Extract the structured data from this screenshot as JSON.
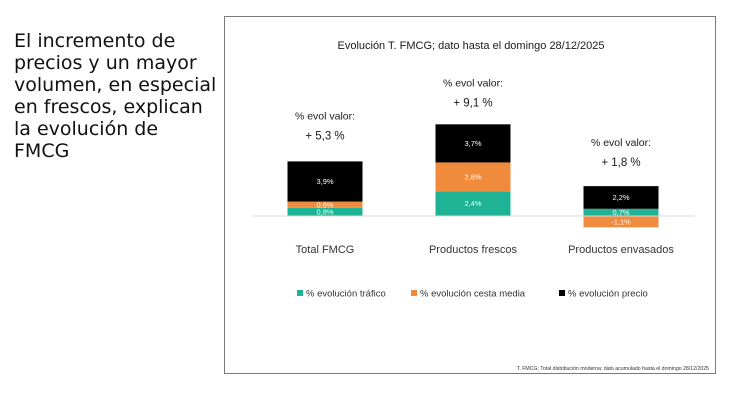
{
  "slide": {
    "intro_text": "El incremento de\nprecios y un mayor\nvolumen, en especial\nen frescos, explican\nla evolución de\nFMCG"
  },
  "chart_data": {
    "type": "bar",
    "stacked": true,
    "title": "Evolución T. FMCG; dato hasta el domingo 28/12/2025",
    "categories": [
      "Total FMCG",
      "Productos frescos",
      "Productos envasados"
    ],
    "series": [
      {
        "name": "% evolución tráfico",
        "color": "#1db394",
        "values": [
          0.8,
          2.4,
          0.7
        ],
        "labels": [
          "0,8%",
          "2,4%",
          "0,7%"
        ]
      },
      {
        "name": "% evolución cesta media",
        "color": "#f08a3c",
        "values": [
          0.6,
          2.8,
          -1.1
        ],
        "labels": [
          "0,6%",
          "2,8%",
          "-1,1%"
        ]
      },
      {
        "name": "% evolución precio",
        "color": "#000000",
        "values": [
          3.9,
          3.7,
          2.2
        ],
        "labels": [
          "3,9%",
          "3,7%",
          "2,2%"
        ]
      }
    ],
    "annotations": [
      {
        "category": "Total FMCG",
        "label": "% evol valor:",
        "value": "+ 5,3 %"
      },
      {
        "category": "Productos frescos",
        "label": "% evol valor:",
        "value": "+ 9,1 %"
      },
      {
        "category": "Productos envasados",
        "label": "% evol valor:",
        "value": "+ 1,8 %"
      }
    ],
    "legend_position": "bottom",
    "grid": false,
    "footnote": "T. FMCG; Total distribución moderna; dato acumulado hasta el domingo 28/12/2025"
  }
}
